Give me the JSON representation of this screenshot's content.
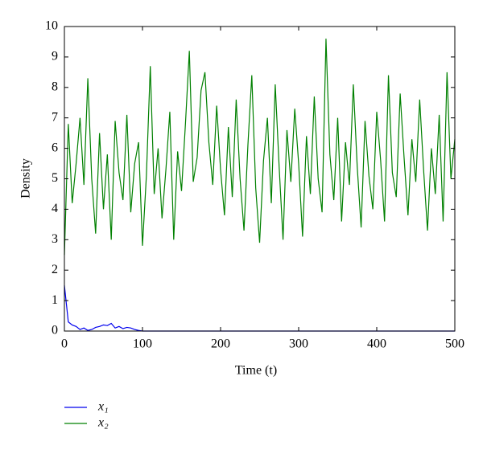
{
  "chart_data": {
    "type": "line",
    "x_label": "Time (t)",
    "y_label": "Density",
    "xlim": [
      0,
      500
    ],
    "xticks": [
      0,
      100,
      200,
      300,
      400,
      500
    ],
    "ylim": [
      0,
      10
    ],
    "yticks": [
      0,
      1,
      2,
      3,
      4,
      5,
      6,
      7,
      8,
      9,
      10
    ],
    "legend": "bottom-left",
    "x": [
      0,
      5,
      10,
      15,
      20,
      25,
      30,
      35,
      40,
      45,
      50,
      55,
      60,
      65,
      70,
      75,
      80,
      85,
      90,
      95,
      100,
      105,
      110,
      115,
      120,
      125,
      130,
      135,
      140,
      145,
      150,
      155,
      160,
      165,
      170,
      175,
      180,
      185,
      190,
      195,
      200,
      205,
      210,
      215,
      220,
      225,
      230,
      235,
      240,
      245,
      250,
      255,
      260,
      265,
      270,
      275,
      280,
      285,
      290,
      295,
      300,
      305,
      310,
      315,
      320,
      325,
      330,
      335,
      340,
      345,
      350,
      355,
      360,
      365,
      370,
      375,
      380,
      385,
      390,
      395,
      400,
      405,
      410,
      415,
      420,
      425,
      430,
      435,
      440,
      445,
      450,
      455,
      460,
      465,
      470,
      475,
      480,
      485,
      490,
      495,
      500
    ],
    "series": [
      {
        "name": "x₁",
        "color": "#0000ee",
        "values": [
          1.5,
          0.3,
          0.2,
          0.15,
          0.05,
          0.1,
          0.02,
          0.05,
          0.12,
          0.15,
          0.2,
          0.18,
          0.25,
          0.1,
          0.15,
          0.08,
          0.12,
          0.1,
          0.05,
          0.02,
          0,
          0,
          0,
          0,
          0,
          0,
          0,
          0,
          0,
          0,
          0,
          0,
          0,
          0,
          0,
          0,
          0,
          0,
          0,
          0,
          0,
          0,
          0,
          0,
          0,
          0,
          0,
          0,
          0,
          0,
          0,
          0,
          0,
          0,
          0,
          0,
          0,
          0,
          0,
          0,
          0,
          0,
          0,
          0,
          0,
          0,
          0,
          0,
          0,
          0,
          0,
          0,
          0,
          0,
          0,
          0,
          0,
          0,
          0,
          0,
          0,
          0,
          0,
          0,
          0,
          0,
          0,
          0,
          0,
          0,
          0,
          0,
          0,
          0,
          0,
          0,
          0,
          0,
          0,
          0,
          0
        ]
      },
      {
        "name": "x₂",
        "color": "#008000",
        "values": [
          2.5,
          6.8,
          4.2,
          5.5,
          7.0,
          4.8,
          8.3,
          5.0,
          3.2,
          6.5,
          4.0,
          5.8,
          3.0,
          6.9,
          5.2,
          4.3,
          7.1,
          3.9,
          5.5,
          6.2,
          2.8,
          5.1,
          8.7,
          4.5,
          6.0,
          3.7,
          5.3,
          7.2,
          3.0,
          5.9,
          4.6,
          6.8,
          9.2,
          4.9,
          5.7,
          7.9,
          8.5,
          6.2,
          4.8,
          7.4,
          5.3,
          3.8,
          6.7,
          4.4,
          7.6,
          5.0,
          3.3,
          6.1,
          8.4,
          4.7,
          2.9,
          5.6,
          7.0,
          4.2,
          8.1,
          5.4,
          3.0,
          6.6,
          4.9,
          7.3,
          5.5,
          3.1,
          6.4,
          4.5,
          7.7,
          5.0,
          3.9,
          9.6,
          5.8,
          4.3,
          7.0,
          3.6,
          6.2,
          4.8,
          8.1,
          5.4,
          3.4,
          6.9,
          5.1,
          4.0,
          7.2,
          5.6,
          3.6,
          8.4,
          5.2,
          4.4,
          7.8,
          5.7,
          3.8,
          6.3,
          4.9,
          7.6,
          5.3,
          3.3,
          6.0,
          4.5,
          7.1,
          3.6,
          8.5,
          5.0,
          6.3
        ]
      }
    ]
  }
}
